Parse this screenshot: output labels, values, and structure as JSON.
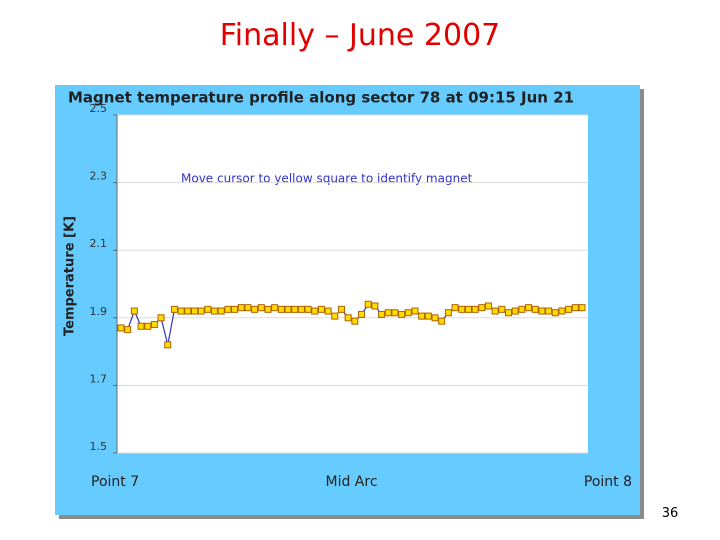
{
  "slide_title": "Finally – June 2007",
  "page_number": "36",
  "chart_data": {
    "type": "line",
    "title": "Magnet temperature profile along sector 78 at 09:15 Jun 21",
    "annotation": "Move cursor to yellow square to identify magnet",
    "y_label": "Temperature [K]",
    "x": [
      0,
      1,
      2,
      3,
      4,
      5,
      6,
      7,
      8,
      9,
      10,
      11,
      12,
      13,
      14,
      15,
      16,
      17,
      18,
      19,
      20,
      21,
      22,
      23,
      24,
      25,
      26,
      27,
      28,
      29,
      30,
      31,
      32,
      33,
      34,
      35,
      36,
      37,
      38,
      39,
      40,
      41,
      42,
      43,
      44,
      45,
      46,
      47,
      48,
      49,
      50,
      51,
      52,
      53,
      54,
      55,
      56,
      57,
      58,
      59,
      60,
      61,
      62,
      63,
      64,
      65,
      66,
      67,
      68,
      69
    ],
    "series": [
      {
        "name": "Temperature",
        "color": "#3333cc",
        "marker_color": "#ffdd00",
        "values": [
          1.87,
          1.865,
          1.92,
          1.875,
          1.875,
          1.88,
          1.9,
          1.82,
          1.925,
          1.92,
          1.92,
          1.92,
          1.92,
          1.925,
          1.92,
          1.92,
          1.925,
          1.925,
          1.93,
          1.93,
          1.925,
          1.93,
          1.925,
          1.93,
          1.925,
          1.925,
          1.925,
          1.925,
          1.925,
          1.92,
          1.925,
          1.92,
          1.905,
          1.925,
          1.9,
          1.89,
          1.91,
          1.94,
          1.935,
          1.91,
          1.915,
          1.915,
          1.91,
          1.915,
          1.92,
          1.905,
          1.905,
          1.9,
          1.89,
          1.915,
          1.93,
          1.925,
          1.925,
          1.925,
          1.93,
          1.935,
          1.92,
          1.925,
          1.915,
          1.92,
          1.925,
          1.93,
          1.925,
          1.92,
          1.92,
          1.915,
          1.92,
          1.925,
          1.93,
          1.93
        ]
      }
    ],
    "xlim": [
      0,
      69
    ],
    "xticks": [
      {
        "value": 0,
        "label": "Point 7"
      },
      {
        "value": 34.5,
        "label": "Mid Arc"
      },
      {
        "value": 69,
        "label": "Point 8"
      }
    ],
    "ylim": [
      1.5,
      2.5
    ],
    "yticks": [
      1.5,
      1.7,
      1.9,
      2.1,
      2.3,
      2.5
    ],
    "grid": true
  }
}
